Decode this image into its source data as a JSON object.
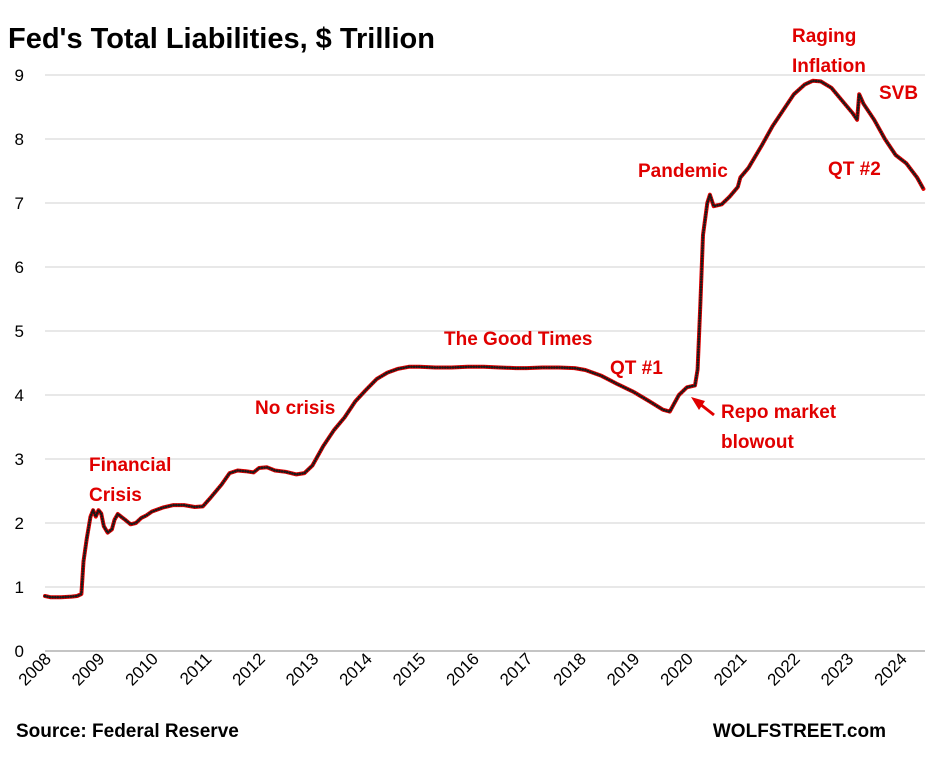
{
  "chart_data": {
    "type": "line",
    "title": "Fed's Total Liabilities, $ Trillion",
    "xlabel": "",
    "ylabel": "",
    "ylim": [
      0,
      9
    ],
    "xlim": [
      2008,
      2024.45
    ],
    "y_ticks": [
      "0",
      "1",
      "2",
      "3",
      "4",
      "5",
      "6",
      "7",
      "8",
      "9"
    ],
    "x_ticks": [
      "2008",
      "2009",
      "2010",
      "2011",
      "2012",
      "2013",
      "2014",
      "2015",
      "2016",
      "2017",
      "2018",
      "2019",
      "2020",
      "2021",
      "2022",
      "2023",
      "2024"
    ],
    "grid": "horizontal",
    "legend": "none",
    "series": [
      {
        "color": "#e00000",
        "marker_color": "#1a1a1a",
        "points": [
          [
            2008.0,
            0.86
          ],
          [
            2008.1,
            0.84
          ],
          [
            2008.3,
            0.84
          ],
          [
            2008.5,
            0.85
          ],
          [
            2008.6,
            0.86
          ],
          [
            2008.68,
            0.89
          ],
          [
            2008.72,
            1.4
          ],
          [
            2008.78,
            1.75
          ],
          [
            2008.85,
            2.1
          ],
          [
            2008.9,
            2.2
          ],
          [
            2008.95,
            2.1
          ],
          [
            2009.0,
            2.2
          ],
          [
            2009.05,
            2.15
          ],
          [
            2009.1,
            1.95
          ],
          [
            2009.17,
            1.85
          ],
          [
            2009.25,
            1.9
          ],
          [
            2009.3,
            2.05
          ],
          [
            2009.36,
            2.14
          ],
          [
            2009.42,
            2.1
          ],
          [
            2009.5,
            2.05
          ],
          [
            2009.6,
            1.98
          ],
          [
            2009.7,
            2.0
          ],
          [
            2009.8,
            2.08
          ],
          [
            2009.9,
            2.12
          ],
          [
            2010.0,
            2.18
          ],
          [
            2010.2,
            2.24
          ],
          [
            2010.4,
            2.28
          ],
          [
            2010.6,
            2.28
          ],
          [
            2010.8,
            2.25
          ],
          [
            2010.95,
            2.26
          ],
          [
            2011.1,
            2.4
          ],
          [
            2011.3,
            2.6
          ],
          [
            2011.45,
            2.78
          ],
          [
            2011.6,
            2.82
          ],
          [
            2011.75,
            2.81
          ],
          [
            2011.9,
            2.79
          ],
          [
            2012.0,
            2.86
          ],
          [
            2012.15,
            2.87
          ],
          [
            2012.3,
            2.82
          ],
          [
            2012.5,
            2.8
          ],
          [
            2012.7,
            2.76
          ],
          [
            2012.85,
            2.78
          ],
          [
            2013.0,
            2.9
          ],
          [
            2013.2,
            3.2
          ],
          [
            2013.4,
            3.45
          ],
          [
            2013.6,
            3.65
          ],
          [
            2013.8,
            3.9
          ],
          [
            2014.0,
            4.08
          ],
          [
            2014.2,
            4.25
          ],
          [
            2014.4,
            4.35
          ],
          [
            2014.6,
            4.41
          ],
          [
            2014.8,
            4.44
          ],
          [
            2015.0,
            4.44
          ],
          [
            2015.3,
            4.43
          ],
          [
            2015.6,
            4.43
          ],
          [
            2015.9,
            4.44
          ],
          [
            2016.2,
            4.44
          ],
          [
            2016.5,
            4.43
          ],
          [
            2016.8,
            4.42
          ],
          [
            2017.0,
            4.42
          ],
          [
            2017.3,
            4.43
          ],
          [
            2017.6,
            4.43
          ],
          [
            2017.9,
            4.42
          ],
          [
            2018.1,
            4.39
          ],
          [
            2018.4,
            4.3
          ],
          [
            2018.7,
            4.17
          ],
          [
            2019.0,
            4.05
          ],
          [
            2019.3,
            3.9
          ],
          [
            2019.55,
            3.77
          ],
          [
            2019.68,
            3.74
          ],
          [
            2019.75,
            3.85
          ],
          [
            2019.85,
            4.0
          ],
          [
            2020.0,
            4.12
          ],
          [
            2020.15,
            4.15
          ],
          [
            2020.2,
            4.4
          ],
          [
            2020.25,
            5.4
          ],
          [
            2020.3,
            6.5
          ],
          [
            2020.38,
            7.0
          ],
          [
            2020.43,
            7.13
          ],
          [
            2020.5,
            6.95
          ],
          [
            2020.65,
            6.98
          ],
          [
            2020.8,
            7.1
          ],
          [
            2020.95,
            7.25
          ],
          [
            2021.0,
            7.4
          ],
          [
            2021.15,
            7.55
          ],
          [
            2021.4,
            7.9
          ],
          [
            2021.6,
            8.2
          ],
          [
            2021.8,
            8.45
          ],
          [
            2022.0,
            8.7
          ],
          [
            2022.2,
            8.85
          ],
          [
            2022.35,
            8.91
          ],
          [
            2022.5,
            8.9
          ],
          [
            2022.7,
            8.8
          ],
          [
            2022.9,
            8.6
          ],
          [
            2023.1,
            8.4
          ],
          [
            2023.18,
            8.3
          ],
          [
            2023.22,
            8.7
          ],
          [
            2023.3,
            8.55
          ],
          [
            2023.5,
            8.3
          ],
          [
            2023.7,
            8.0
          ],
          [
            2023.9,
            7.75
          ],
          [
            2024.1,
            7.62
          ],
          [
            2024.3,
            7.4
          ],
          [
            2024.42,
            7.22
          ]
        ]
      }
    ],
    "annotations": [
      "Financial",
      "Crisis",
      "No crisis",
      "The Good Times",
      "QT #1",
      "Pandemic",
      "Raging",
      "Inflation",
      "SVB",
      "QT #2",
      "Repo market",
      "blowout"
    ]
  },
  "footer": {
    "source": "Source: Federal Reserve",
    "brand": "WOLFSTREET.com"
  },
  "colors": {
    "annotation": "#e00000",
    "arrow": "#e00000",
    "grid": "#d0d0d0"
  }
}
